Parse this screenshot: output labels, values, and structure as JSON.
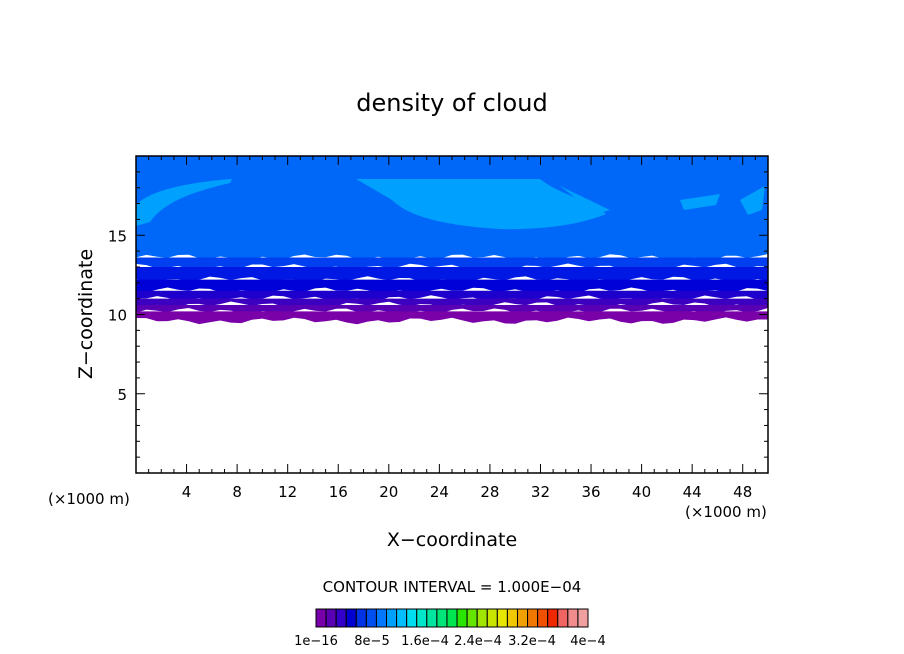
{
  "chart_data": {
    "type": "heatmap",
    "title": "density of cloud",
    "xlabel": "X−coordinate",
    "ylabel": "Z−coordinate",
    "x_unit_left": "(×1000 m)",
    "x_unit_right": "(×1000 m)",
    "xlim": [
      0,
      50
    ],
    "ylim": [
      0,
      20
    ],
    "x_ticks": [
      4,
      8,
      12,
      16,
      20,
      24,
      28,
      32,
      36,
      40,
      44,
      48
    ],
    "y_ticks": [
      5,
      10,
      15
    ],
    "cloud_base_z": 10,
    "cloud_top_z": 20,
    "layers": [
      {
        "z_bottom": 9.6,
        "z_top": 10.2,
        "color": "#7a00a8"
      },
      {
        "z_bottom": 10.2,
        "z_top": 10.6,
        "color": "#5a00b4"
      },
      {
        "z_bottom": 10.6,
        "z_top": 11.0,
        "color": "#3c00c0"
      },
      {
        "z_bottom": 11.0,
        "z_top": 11.5,
        "color": "#1e00cc"
      },
      {
        "z_bottom": 11.5,
        "z_top": 12.2,
        "color": "#0000d8"
      },
      {
        "z_bottom": 12.2,
        "z_top": 13.0,
        "color": "#0018e4"
      },
      {
        "z_bottom": 13.0,
        "z_top": 13.6,
        "color": "#0040f0"
      },
      {
        "z_bottom": 13.6,
        "z_top": 20.0,
        "color": "#0068f8"
      }
    ],
    "highlight_color": "#00a0ff",
    "contour_interval_label": "CONTOUR INTERVAL = 1.000E−04",
    "colorbar": {
      "colors": [
        "#7800a8",
        "#5a00b4",
        "#3200c8",
        "#0000d2",
        "#0032e6",
        "#0050f0",
        "#0078ff",
        "#00a0ff",
        "#00beff",
        "#00dcf0",
        "#00e6c8",
        "#00e6a0",
        "#00e678",
        "#00e650",
        "#28e600",
        "#64e600",
        "#a0e600",
        "#c8e600",
        "#e6e600",
        "#f0c800",
        "#f0a000",
        "#f07800",
        "#f05000",
        "#f02800",
        "#f06464",
        "#f08c8c",
        "#f0a0a0"
      ],
      "tick_labels": [
        "1e−16",
        "8e−5",
        "1.6e−4",
        "2.4e−4",
        "3.2e−4",
        "4e−4"
      ]
    }
  }
}
